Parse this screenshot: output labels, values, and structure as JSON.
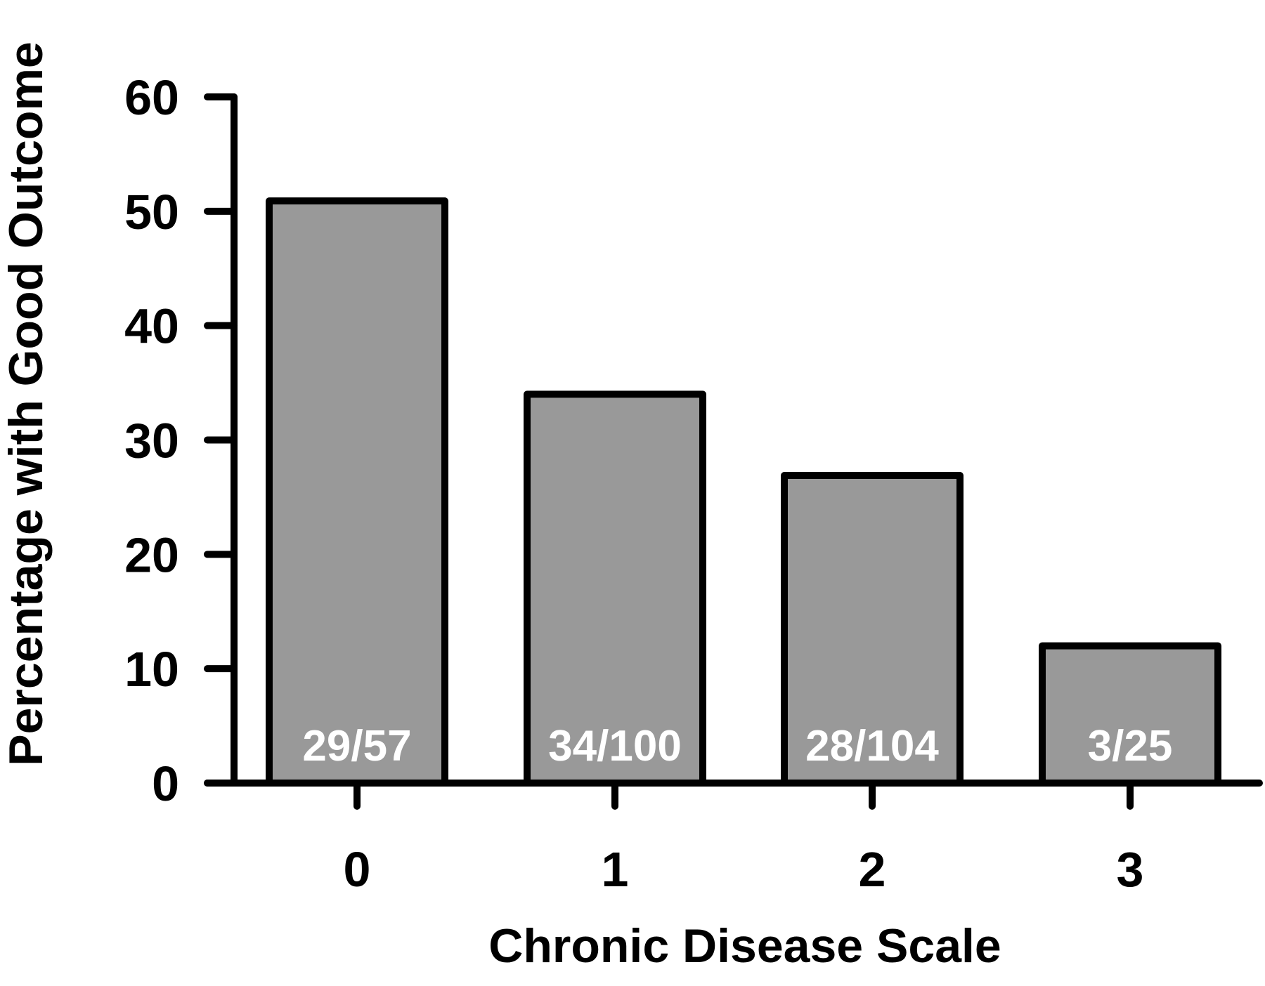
{
  "chart_data": {
    "type": "bar",
    "title": "",
    "xlabel": "Chronic Disease Scale",
    "ylabel": "Percentage with Good Outcome",
    "categories": [
      "0",
      "1",
      "2",
      "3"
    ],
    "values": [
      50.9,
      34,
      26.9,
      12
    ],
    "data_labels": [
      "29/57",
      "34/100",
      "28/104",
      "3/25"
    ],
    "ylim": [
      0,
      60
    ],
    "yticks": [
      0,
      10,
      20,
      30,
      40,
      50,
      60
    ],
    "grid": false,
    "legend": "none",
    "bar_color": "#999999",
    "bar_edge_color": "#000000",
    "data_label_color": "#ffffff"
  }
}
